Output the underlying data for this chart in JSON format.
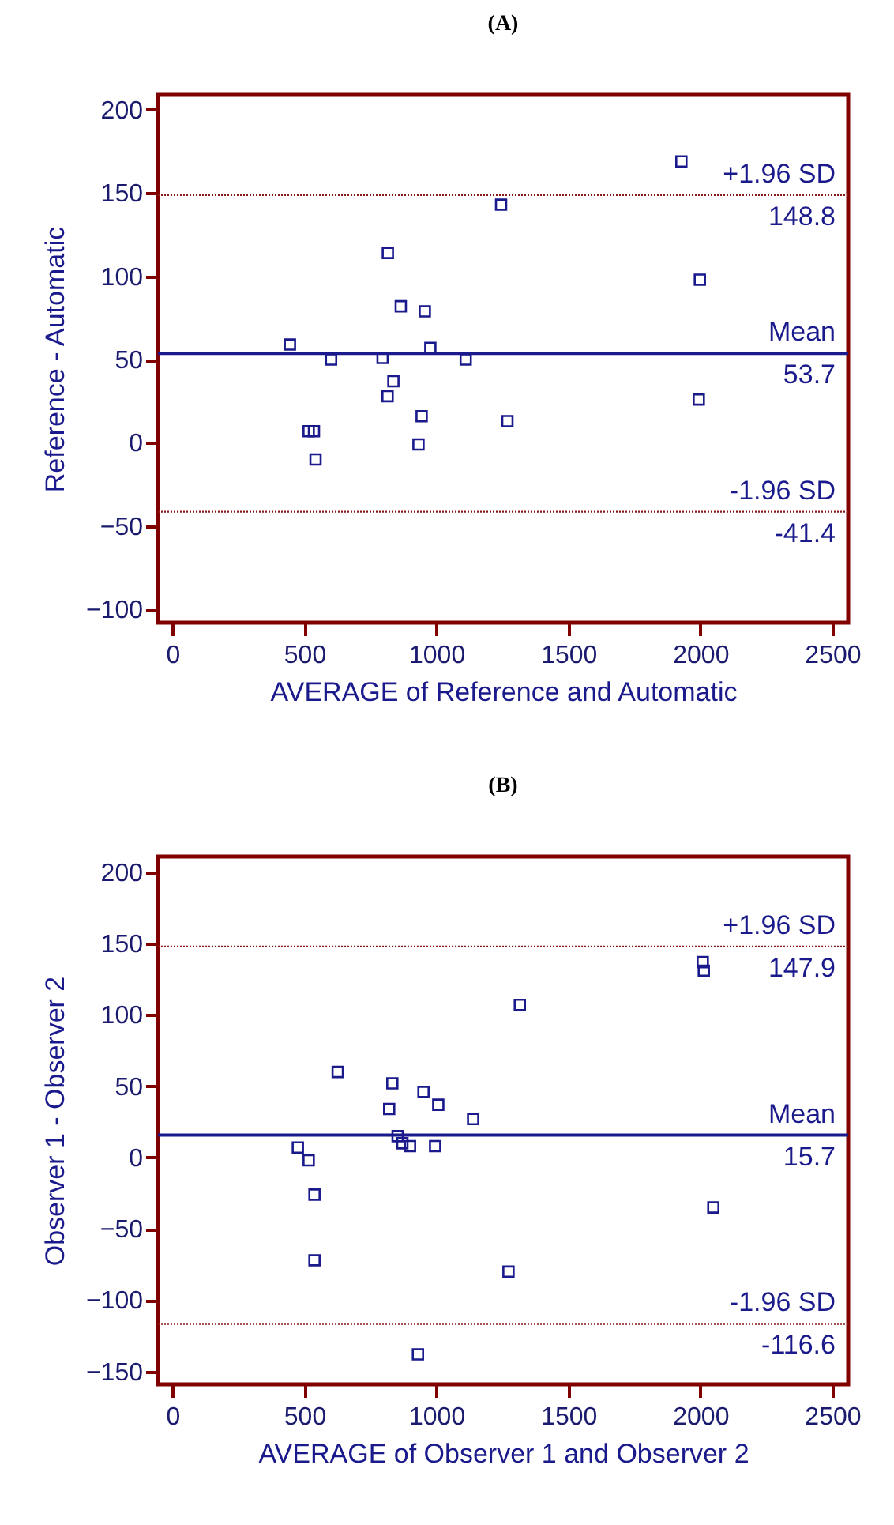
{
  "chart_data": [
    {
      "type": "scatter",
      "title": "(A)",
      "xlabel": "AVERAGE of Reference and Automatic",
      "ylabel": "Reference - Automatic",
      "marker": "square",
      "xlim": [
        -55,
        2560
      ],
      "ylim": [
        -108,
        209
      ],
      "xticks": [
        0,
        500,
        1000,
        1500,
        2000,
        2500
      ],
      "yticks": [
        -100,
        -50,
        0,
        50,
        100,
        150,
        200
      ],
      "series": [
        {
          "color": "#1a1a8c",
          "x": [
            1928,
            1245,
            816,
            1998,
            865,
            956,
            445,
            977,
            601,
            796,
            1111,
            837,
            815,
            1994,
            944,
            1269,
            516,
            536,
            932,
            542
          ],
          "values": [
            169,
            143,
            114,
            98,
            82,
            79,
            59,
            57,
            50,
            51,
            50,
            37,
            28,
            26,
            16,
            13,
            7,
            7,
            -1,
            -10
          ]
        }
      ],
      "ref_lines": [
        {
          "axis": "y",
          "value": 148.8,
          "label": "+1.96 SD",
          "color": "#8b1a1a",
          "line_style": "dotted"
        },
        {
          "axis": "y",
          "value": 53.7,
          "label": "Mean",
          "color": "#1a1a8c",
          "line_style": "solid"
        },
        {
          "axis": "y",
          "value": -41.4,
          "label": "-1.96 SD",
          "color": "#8b1a1a",
          "line_style": "dotted"
        }
      ],
      "annotations": [
        {
          "text": "148.8",
          "y": 148.8
        },
        {
          "text": "53.7",
          "y": 53.7
        },
        {
          "text": "-41.4",
          "y": -41.4
        }
      ]
    },
    {
      "type": "scatter",
      "title": "(B)",
      "xlabel": "AVERAGE of Observer 1 and Observer 2",
      "ylabel": "Observer 1 - Observer 2",
      "marker": "square",
      "xlim": [
        -55,
        2560
      ],
      "ylim": [
        -159,
        211
      ],
      "xticks": [
        0,
        500,
        1000,
        1500,
        2000,
        2500
      ],
      "yticks": [
        -150,
        -100,
        -50,
        0,
        50,
        100,
        150,
        200
      ],
      "series": [
        {
          "color": "#1a1a8c",
          "x": [
            2009,
            2013,
            1316,
            626,
            833,
            951,
            1007,
            821,
            1139,
            853,
            871,
            900,
            995,
            475,
            516,
            538,
            2049,
            538,
            1273,
            930
          ],
          "values": [
            137,
            131,
            107,
            60,
            52,
            46,
            37,
            34,
            27,
            15,
            10,
            8,
            8,
            7,
            -2,
            -26,
            -35,
            -72,
            -80,
            -138
          ]
        }
      ],
      "ref_lines": [
        {
          "axis": "y",
          "value": 147.9,
          "label": "+1.96 SD",
          "color": "#8b1a1a",
          "line_style": "dotted"
        },
        {
          "axis": "y",
          "value": 15.7,
          "label": "Mean",
          "color": "#1a1a8c",
          "line_style": "solid"
        },
        {
          "axis": "y",
          "value": -116.6,
          "label": "-1.96 SD",
          "color": "#8b1a1a",
          "line_style": "dotted"
        }
      ],
      "annotations": [
        {
          "text": "147.9",
          "y": 147.9
        },
        {
          "text": "15.7",
          "y": 15.7
        },
        {
          "text": "-116.6",
          "y": -116.6
        }
      ]
    }
  ]
}
